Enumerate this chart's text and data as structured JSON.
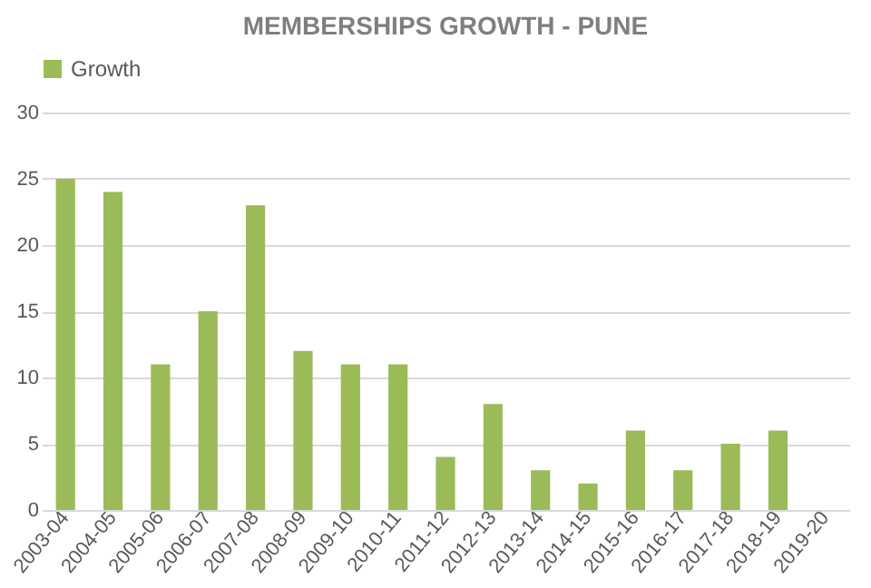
{
  "chart_data": {
    "type": "bar",
    "title": "MEMBERSHIPS GROWTH - PUNE",
    "categories": [
      "2003-04",
      "2004-05",
      "2005-06",
      "2006-07",
      "2007-08",
      "2008-09",
      "2009-10",
      "2010-11",
      "2011-12",
      "2012-13",
      "2013-14",
      "2014-15",
      "2015-16",
      "2016-17",
      "2017-18",
      "2018-19",
      "2019-20"
    ],
    "series": [
      {
        "name": "Growth",
        "color": "#9bbb59",
        "values": [
          25,
          24,
          11,
          15,
          23,
          12,
          11,
          11,
          4,
          8,
          3,
          2,
          6,
          3,
          5,
          6,
          null
        ]
      }
    ],
    "ylim": [
      0,
      30
    ],
    "yticks": [
      0,
      5,
      10,
      15,
      20,
      25,
      30
    ],
    "grid": "y",
    "legend": "top"
  }
}
